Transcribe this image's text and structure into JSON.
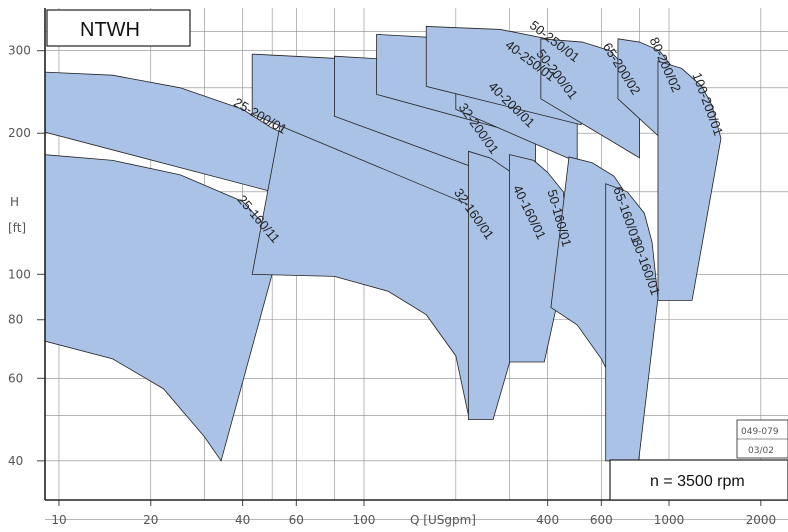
{
  "chart_data": {
    "type": "area",
    "title": "NTWH",
    "annotation": "n = 3500 rpm",
    "doc_code": [
      "049-079",
      "03/02"
    ],
    "xlabel": "Q [USgpm]",
    "ylabel": [
      "H",
      "[ft]"
    ],
    "x_scale": "log",
    "y_scale": "log",
    "xlim": [
      9,
      2400
    ],
    "ylim": [
      33,
      370
    ],
    "x_ticks": [
      {
        "value": 10,
        "label": "10"
      },
      {
        "value": 20,
        "label": "20"
      },
      {
        "value": 40,
        "label": "40"
      },
      {
        "value": 60,
        "label": "60"
      },
      {
        "value": 100,
        "label": "100"
      },
      {
        "value": 400,
        "label": "400"
      },
      {
        "value": 600,
        "label": "600"
      },
      {
        "value": 1000,
        "label": "1000"
      },
      {
        "value": 2000,
        "label": "2000"
      }
    ],
    "y_ticks": [
      {
        "value": 300,
        "label": "300"
      },
      {
        "value": 200,
        "label": "200"
      },
      {
        "value": 100,
        "label": "100"
      },
      {
        "value": 80,
        "label": "80"
      },
      {
        "value": 60,
        "label": "60"
      },
      {
        "value": 40,
        "label": "40"
      }
    ],
    "x_grid": [
      10,
      20,
      30,
      40,
      50,
      60,
      80,
      100,
      200,
      300,
      400,
      600,
      800,
      1000,
      2000
    ],
    "y_grid": [
      30,
      40,
      50,
      60,
      80,
      100,
      150,
      200,
      250,
      300,
      330
    ],
    "ranges": [
      {
        "name": "25-160/11",
        "curve": [
          [
            9,
            180
          ],
          [
            15,
            175
          ],
          [
            25,
            163
          ],
          [
            40,
            143
          ],
          [
            47,
            128
          ],
          [
            53,
            115
          ]
        ],
        "min_curve": [
          [
            9,
            72
          ],
          [
            15,
            66
          ],
          [
            22,
            57
          ],
          [
            30,
            45
          ],
          [
            34,
            40
          ]
        ]
      },
      {
        "name": "25-200/01",
        "curve": [
          [
            9,
            270
          ],
          [
            15,
            266
          ],
          [
            25,
            250
          ],
          [
            40,
            225
          ],
          [
            50,
            205
          ],
          [
            57,
            197
          ]
        ]
      },
      {
        "name": "32-160/01",
        "curve": [
          [
            53,
            207
          ],
          [
            80,
            206
          ],
          [
            120,
            196
          ],
          [
            170,
            177
          ],
          [
            220,
            148
          ],
          [
            265,
            117
          ]
        ],
        "min_curve": [
          [
            43,
            100
          ],
          [
            80,
            99
          ],
          [
            120,
            92
          ],
          [
            160,
            82
          ],
          [
            200,
            67
          ],
          [
            220,
            50
          ]
        ]
      },
      {
        "name": "32-200/01",
        "curve": [
          [
            43,
            295
          ],
          [
            80,
            289
          ],
          [
            130,
            276
          ],
          [
            190,
            250
          ],
          [
            240,
            220
          ],
          [
            275,
            178
          ]
        ]
      },
      {
        "name": "40-160/01",
        "curve": [
          [
            220,
            183
          ],
          [
            260,
            177
          ],
          [
            300,
            166
          ],
          [
            340,
            150
          ],
          [
            390,
            117
          ]
        ],
        "min_curve": [
          [
            265,
            49
          ]
        ]
      },
      {
        "name": "40-200/01",
        "curve": [
          [
            80,
            292
          ],
          [
            150,
            285
          ],
          [
            240,
            265
          ],
          [
            320,
            233
          ],
          [
            365,
            203
          ]
        ]
      },
      {
        "name": "40-250/01",
        "curve": [
          [
            110,
            325
          ],
          [
            200,
            318
          ],
          [
            300,
            304
          ],
          [
            380,
            282
          ],
          [
            430,
            255
          ]
        ]
      },
      {
        "name": "50-160/01",
        "curve": [
          [
            300,
            180
          ],
          [
            360,
            175
          ],
          [
            400,
            165
          ],
          [
            450,
            150
          ],
          [
            470,
            113
          ]
        ],
        "min_curve": [
          [
            390,
            65
          ]
        ]
      },
      {
        "name": "50-200/01",
        "curve": [
          [
            200,
            302
          ],
          [
            300,
            298
          ],
          [
            400,
            282
          ],
          [
            460,
            263
          ],
          [
            500,
            233
          ]
        ]
      },
      {
        "name": "50-250/01",
        "curve": [
          [
            160,
            338
          ],
          [
            280,
            333
          ],
          [
            400,
            318
          ],
          [
            480,
            300
          ],
          [
            515,
            280
          ]
        ]
      },
      {
        "name": "65-160/01",
        "curve": [
          [
            470,
            178
          ],
          [
            560,
            173
          ],
          [
            660,
            162
          ],
          [
            740,
            145
          ],
          [
            795,
            115
          ]
        ],
        "min_curve": [
          [
            410,
            85
          ],
          [
            500,
            78
          ],
          [
            600,
            66
          ],
          [
            710,
            53
          ]
        ]
      },
      {
        "name": "65-200/02",
        "curve": [
          [
            380,
            318
          ],
          [
            520,
            313
          ],
          [
            640,
            300
          ],
          [
            730,
            274
          ],
          [
            800,
            238
          ]
        ]
      },
      {
        "name": "80-160/01",
        "curve": [
          [
            620,
            156
          ],
          [
            730,
            150
          ],
          [
            830,
            135
          ],
          [
            880,
            117
          ],
          [
            920,
            89
          ]
        ],
        "min_curve": [
          [
            795,
            40
          ]
        ]
      },
      {
        "name": "80-200/02",
        "curve": [
          [
            680,
            318
          ],
          [
            800,
            313
          ],
          [
            930,
            300
          ],
          [
            1020,
            278
          ],
          [
            1080,
            241
          ]
        ]
      },
      {
        "name": "100-200/01",
        "curve": [
          [
            920,
            285
          ],
          [
            1100,
            275
          ],
          [
            1280,
            252
          ],
          [
            1380,
            230
          ],
          [
            1480,
            195
          ]
        ],
        "min_curve": [
          [
            1190,
            88
          ]
        ]
      }
    ]
  }
}
